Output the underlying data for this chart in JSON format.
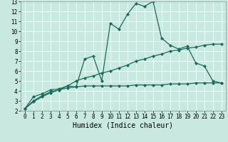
{
  "title": "",
  "xlabel": "Humidex (Indice chaleur)",
  "ylabel": "",
  "xlim": [
    -0.5,
    23.5
  ],
  "ylim": [
    2,
    13
  ],
  "xticks": [
    0,
    1,
    2,
    3,
    4,
    5,
    6,
    7,
    8,
    9,
    10,
    11,
    12,
    13,
    14,
    15,
    16,
    17,
    18,
    19,
    20,
    21,
    22,
    23
  ],
  "yticks": [
    2,
    3,
    4,
    5,
    6,
    7,
    8,
    9,
    10,
    11,
    12,
    13
  ],
  "bg_color": "#c8e8e0",
  "line_color": "#1a6b5a",
  "line1_x": [
    0,
    1,
    2,
    3,
    4,
    5,
    6,
    7,
    8,
    9,
    10,
    11,
    12,
    13,
    14,
    15,
    16,
    17,
    18,
    19,
    20,
    21,
    22,
    23
  ],
  "line1_y": [
    2.2,
    3.4,
    3.7,
    4.1,
    4.2,
    4.5,
    4.4,
    7.2,
    7.5,
    5.0,
    10.8,
    10.2,
    11.7,
    12.8,
    12.5,
    13.0,
    9.3,
    8.6,
    8.2,
    8.5,
    6.8,
    6.5,
    5.0,
    4.8
  ],
  "line2_x": [
    0,
    1,
    2,
    3,
    4,
    5,
    6,
    7,
    8,
    9,
    10,
    11,
    12,
    13,
    14,
    15,
    16,
    17,
    18,
    19,
    20,
    21,
    22,
    23
  ],
  "line2_y": [
    2.2,
    3.0,
    3.5,
    3.9,
    4.1,
    4.5,
    5.0,
    5.3,
    5.5,
    5.8,
    6.0,
    6.3,
    6.6,
    7.0,
    7.2,
    7.5,
    7.7,
    8.0,
    8.1,
    8.3,
    8.4,
    8.6,
    8.7,
    8.7
  ],
  "line3_x": [
    0,
    1,
    2,
    3,
    4,
    5,
    6,
    7,
    8,
    9,
    10,
    11,
    12,
    13,
    14,
    15,
    16,
    17,
    18,
    19,
    20,
    21,
    22,
    23
  ],
  "line3_y": [
    2.2,
    2.9,
    3.4,
    3.8,
    4.1,
    4.3,
    4.4,
    4.5,
    4.5,
    4.5,
    4.5,
    4.5,
    4.5,
    4.6,
    4.6,
    4.6,
    4.6,
    4.7,
    4.7,
    4.7,
    4.8,
    4.8,
    4.8,
    4.8
  ],
  "marker": "D",
  "markersize": 2.0,
  "linewidth": 0.9,
  "tick_fontsize": 5.5,
  "label_fontsize": 7.0
}
